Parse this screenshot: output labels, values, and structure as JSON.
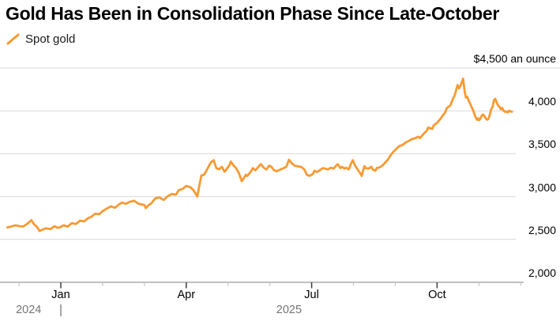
{
  "chart_data": {
    "type": "line",
    "title": "Gold Has Been in Consolidation Phase Since Late-October",
    "legend": [
      {
        "label": "Spot gold",
        "color": "#F79A33"
      }
    ],
    "unit_label": "$4,500 an ounce",
    "ylim": [
      2000,
      4500
    ],
    "yticks": [
      {
        "value": 4500,
        "label": "$4,500 an ounce"
      },
      {
        "value": 4000,
        "label": "4,000"
      },
      {
        "value": 3500,
        "label": "3,500"
      },
      {
        "value": 3000,
        "label": "3,000"
      },
      {
        "value": 2500,
        "label": "2,500"
      },
      {
        "value": 2000,
        "label": "2,000"
      }
    ],
    "xticks_major": [
      {
        "date": "2025-01-01",
        "label": "Jan"
      },
      {
        "date": "2025-04-01",
        "label": "Apr"
      },
      {
        "date": "2025-07-01",
        "label": "Jul"
      },
      {
        "date": "2025-10-01",
        "label": "Oct"
      }
    ],
    "xticks_minor": [
      "2024-12-01",
      "2025-02-01",
      "2025-03-01",
      "2025-05-01",
      "2025-06-01",
      "2025-08-01",
      "2025-09-01",
      "2025-11-01",
      "2025-12-01"
    ],
    "year_labels": [
      {
        "label": "2024",
        "anchor_date": "2024-12-08",
        "divider_date": "2025-01-01"
      },
      {
        "label": "2025",
        "anchor_date": "2025-06-15"
      }
    ],
    "grid": true,
    "legend_position": "top-left",
    "colors": {
      "line": "#F79A33",
      "gridline": "#d9d9d9",
      "axis": "#9b9b9b",
      "tick_major": "#3c3c3c",
      "tick_minor": "#c4c4c4"
    },
    "series": [
      {
        "name": "Spot gold",
        "color": "#F79A33",
        "points": [
          [
            "2024-11-23",
            2640
          ],
          [
            "2024-11-26",
            2652
          ],
          [
            "2024-11-29",
            2665
          ],
          [
            "2024-12-01",
            2656
          ],
          [
            "2024-12-04",
            2650
          ],
          [
            "2024-12-07",
            2682
          ],
          [
            "2024-12-10",
            2725
          ],
          [
            "2024-12-12",
            2675
          ],
          [
            "2024-12-14",
            2650
          ],
          [
            "2024-12-16",
            2598
          ],
          [
            "2024-12-18",
            2615
          ],
          [
            "2024-12-21",
            2630
          ],
          [
            "2024-12-24",
            2620
          ],
          [
            "2024-12-27",
            2655
          ],
          [
            "2024-12-29",
            2636
          ],
          [
            "2024-12-31",
            2642
          ],
          [
            "2025-01-03",
            2665
          ],
          [
            "2025-01-06",
            2650
          ],
          [
            "2025-01-09",
            2690
          ],
          [
            "2025-01-12",
            2680
          ],
          [
            "2025-01-15",
            2720
          ],
          [
            "2025-01-18",
            2710
          ],
          [
            "2025-01-21",
            2750
          ],
          [
            "2025-01-23",
            2762
          ],
          [
            "2025-01-26",
            2800
          ],
          [
            "2025-01-29",
            2794
          ],
          [
            "2025-02-01",
            2830
          ],
          [
            "2025-02-04",
            2860
          ],
          [
            "2025-02-07",
            2886
          ],
          [
            "2025-02-10",
            2870
          ],
          [
            "2025-02-13",
            2910
          ],
          [
            "2025-02-15",
            2930
          ],
          [
            "2025-02-18",
            2915
          ],
          [
            "2025-02-21",
            2940
          ],
          [
            "2025-02-24",
            2951
          ],
          [
            "2025-02-27",
            2918
          ],
          [
            "2025-03-01",
            2900
          ],
          [
            "2025-03-02",
            2865
          ],
          [
            "2025-03-04",
            2900
          ],
          [
            "2025-03-06",
            2920
          ],
          [
            "2025-03-09",
            2980
          ],
          [
            "2025-03-12",
            2990
          ],
          [
            "2025-03-15",
            2960
          ],
          [
            "2025-03-18",
            3005
          ],
          [
            "2025-03-21",
            3030
          ],
          [
            "2025-03-24",
            3022
          ],
          [
            "2025-03-26",
            3075
          ],
          [
            "2025-03-29",
            3090
          ],
          [
            "2025-04-01",
            3125
          ],
          [
            "2025-04-04",
            3110
          ],
          [
            "2025-04-06",
            3080
          ],
          [
            "2025-04-08",
            3030
          ],
          [
            "2025-04-09",
            3000
          ],
          [
            "2025-04-12",
            3245
          ],
          [
            "2025-04-14",
            3255
          ],
          [
            "2025-04-17",
            3340
          ],
          [
            "2025-04-19",
            3400
          ],
          [
            "2025-04-21",
            3424
          ],
          [
            "2025-04-23",
            3330
          ],
          [
            "2025-04-25",
            3318
          ],
          [
            "2025-04-27",
            3347
          ],
          [
            "2025-04-29",
            3290
          ],
          [
            "2025-05-02",
            3365
          ],
          [
            "2025-05-03",
            3410
          ],
          [
            "2025-05-05",
            3362
          ],
          [
            "2025-05-07",
            3330
          ],
          [
            "2025-05-09",
            3270
          ],
          [
            "2025-05-11",
            3180
          ],
          [
            "2025-05-14",
            3255
          ],
          [
            "2025-05-15",
            3240
          ],
          [
            "2025-05-18",
            3300
          ],
          [
            "2025-05-19",
            3332
          ],
          [
            "2025-05-21",
            3306
          ],
          [
            "2025-05-24",
            3363
          ],
          [
            "2025-05-25",
            3378
          ],
          [
            "2025-05-27",
            3338
          ],
          [
            "2025-05-29",
            3316
          ],
          [
            "2025-05-31",
            3360
          ],
          [
            "2025-06-02",
            3350
          ],
          [
            "2025-06-04",
            3308
          ],
          [
            "2025-06-06",
            3295
          ],
          [
            "2025-06-09",
            3318
          ],
          [
            "2025-06-11",
            3332
          ],
          [
            "2025-06-13",
            3348
          ],
          [
            "2025-06-15",
            3430
          ],
          [
            "2025-06-17",
            3388
          ],
          [
            "2025-06-19",
            3362
          ],
          [
            "2025-06-21",
            3355
          ],
          [
            "2025-06-24",
            3345
          ],
          [
            "2025-06-26",
            3320
          ],
          [
            "2025-06-28",
            3255
          ],
          [
            "2025-06-30",
            3242
          ],
          [
            "2025-07-02",
            3266
          ],
          [
            "2025-07-03",
            3302
          ],
          [
            "2025-07-05",
            3287
          ],
          [
            "2025-07-07",
            3308
          ],
          [
            "2025-07-09",
            3332
          ],
          [
            "2025-07-11",
            3326
          ],
          [
            "2025-07-13",
            3317
          ],
          [
            "2025-07-15",
            3338
          ],
          [
            "2025-07-17",
            3326
          ],
          [
            "2025-07-19",
            3363
          ],
          [
            "2025-07-20",
            3378
          ],
          [
            "2025-07-22",
            3332
          ],
          [
            "2025-07-23",
            3348
          ],
          [
            "2025-07-25",
            3326
          ],
          [
            "2025-07-26",
            3338
          ],
          [
            "2025-07-28",
            3317
          ],
          [
            "2025-07-30",
            3393
          ],
          [
            "2025-07-31",
            3424
          ],
          [
            "2025-08-02",
            3368
          ],
          [
            "2025-08-04",
            3318
          ],
          [
            "2025-08-06",
            3270
          ],
          [
            "2025-08-07",
            3242
          ],
          [
            "2025-08-08",
            3302
          ],
          [
            "2025-08-09",
            3356
          ],
          [
            "2025-08-10",
            3332
          ],
          [
            "2025-08-12",
            3326
          ],
          [
            "2025-08-14",
            3348
          ],
          [
            "2025-08-15",
            3317
          ],
          [
            "2025-08-17",
            3302
          ],
          [
            "2025-08-18",
            3332
          ],
          [
            "2025-08-20",
            3340
          ],
          [
            "2025-08-22",
            3360
          ],
          [
            "2025-08-24",
            3395
          ],
          [
            "2025-08-26",
            3430
          ],
          [
            "2025-08-28",
            3480
          ],
          [
            "2025-08-30",
            3520
          ],
          [
            "2025-09-02",
            3560
          ],
          [
            "2025-09-04",
            3590
          ],
          [
            "2025-09-06",
            3600
          ],
          [
            "2025-09-09",
            3635
          ],
          [
            "2025-09-11",
            3650
          ],
          [
            "2025-09-13",
            3670
          ],
          [
            "2025-09-15",
            3678
          ],
          [
            "2025-09-18",
            3698
          ],
          [
            "2025-09-19",
            3683
          ],
          [
            "2025-09-22",
            3738
          ],
          [
            "2025-09-24",
            3768
          ],
          [
            "2025-09-25",
            3805
          ],
          [
            "2025-09-28",
            3790
          ],
          [
            "2025-09-29",
            3830
          ],
          [
            "2025-10-01",
            3860
          ],
          [
            "2025-10-03",
            3898
          ],
          [
            "2025-10-05",
            3943
          ],
          [
            "2025-10-07",
            3985
          ],
          [
            "2025-10-08",
            4030
          ],
          [
            "2025-10-10",
            4055
          ],
          [
            "2025-10-11",
            4075
          ],
          [
            "2025-10-12",
            4120
          ],
          [
            "2025-10-14",
            4186
          ],
          [
            "2025-10-15",
            4250
          ],
          [
            "2025-10-16",
            4302
          ],
          [
            "2025-10-17",
            4262
          ],
          [
            "2025-10-18",
            4290
          ],
          [
            "2025-10-19",
            4330
          ],
          [
            "2025-10-20",
            4375
          ],
          [
            "2025-10-21",
            4240
          ],
          [
            "2025-10-22",
            4156
          ],
          [
            "2025-10-23",
            4165
          ],
          [
            "2025-10-24",
            4120
          ],
          [
            "2025-10-25",
            4090
          ],
          [
            "2025-10-26",
            4049
          ],
          [
            "2025-10-27",
            4019
          ],
          [
            "2025-10-28",
            3975
          ],
          [
            "2025-10-29",
            3930
          ],
          [
            "2025-10-30",
            3897
          ],
          [
            "2025-10-31",
            3912
          ],
          [
            "2025-11-01",
            3890
          ],
          [
            "2025-11-02",
            3905
          ],
          [
            "2025-11-03",
            3943
          ],
          [
            "2025-11-04",
            3958
          ],
          [
            "2025-11-05",
            3943
          ],
          [
            "2025-11-06",
            3912
          ],
          [
            "2025-11-07",
            3897
          ],
          [
            "2025-11-08",
            3905
          ],
          [
            "2025-11-09",
            3958
          ],
          [
            "2025-11-10",
            4019
          ],
          [
            "2025-11-11",
            4049
          ],
          [
            "2025-11-12",
            4125
          ],
          [
            "2025-11-13",
            4140
          ],
          [
            "2025-11-14",
            4095
          ],
          [
            "2025-11-15",
            4065
          ],
          [
            "2025-11-16",
            4049
          ],
          [
            "2025-11-17",
            4019
          ],
          [
            "2025-11-18",
            4034
          ],
          [
            "2025-11-19",
            4003
          ],
          [
            "2025-11-20",
            3988
          ],
          [
            "2025-11-21",
            3994
          ],
          [
            "2025-11-22",
            3982
          ],
          [
            "2025-11-23",
            4003
          ],
          [
            "2025-11-24",
            3994
          ],
          [
            "2025-11-25",
            3990
          ]
        ]
      }
    ]
  }
}
